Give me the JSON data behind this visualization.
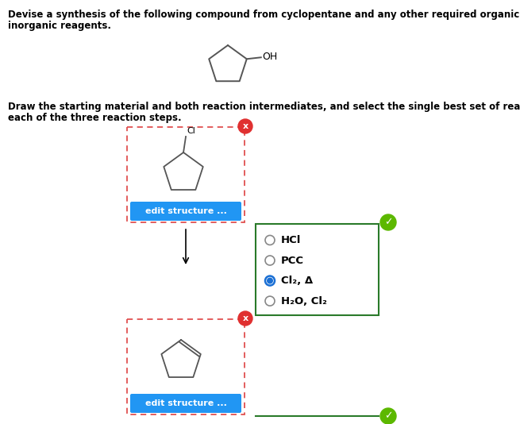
{
  "title_text1": "Devise a synthesis of the following compound from cyclopentane and any other required organic or",
  "title_text2": "inorganic reagents.",
  "subtitle_text1": "Draw the starting material and both reaction intermediates, and select the single best set of reagents for",
  "subtitle_text2": "each of the three reaction steps.",
  "bg_color": "#ffffff",
  "text_color": "#000000",
  "box_border_color": "#e05050",
  "reagent_box_color": "#2a7a2a",
  "btn_color": "#2196F3",
  "btn_text": "edit structure ...",
  "reagents": [
    "HCl",
    "PCC",
    "Cl₂, Δ",
    "H₂O, Cl₂"
  ],
  "selected_reagent": 2,
  "checkmark_color": "#5cb800",
  "x_color": "#e03030",
  "figw": 6.55,
  "figh": 5.34,
  "dpi": 100
}
